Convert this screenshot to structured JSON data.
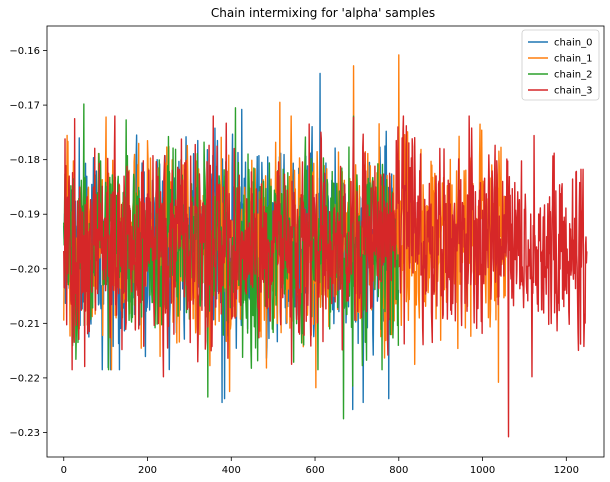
{
  "chart_data": {
    "type": "line",
    "title": "Chain intermixing for 'alpha' samples",
    "xlabel": "",
    "ylabel": "",
    "xlim": [
      -40,
      1290
    ],
    "ylim": [
      -0.2345,
      -0.1555
    ],
    "xticks": [
      0,
      200,
      400,
      600,
      800,
      1000,
      1200
    ],
    "xtick_labels": [
      "0",
      "200",
      "400",
      "600",
      "800",
      "1000",
      "1200"
    ],
    "yticks": [
      -0.23,
      -0.22,
      -0.21,
      -0.2,
      -0.19,
      -0.18,
      -0.17,
      -0.16
    ],
    "ytick_labels": [
      "−0.23",
      "−0.22",
      "−0.21",
      "−0.20",
      "−0.19",
      "−0.18",
      "−0.17",
      "−0.16"
    ],
    "grid": false,
    "legend_position": "top-right",
    "series": [
      {
        "name": "chain_0",
        "color": "#1f77b4",
        "n_samples": 800,
        "mean": -0.1955,
        "spread": 0.0105,
        "seed": 11,
        "extremes": [
          [
            60,
            -0.2125
          ],
          [
            174,
            -0.1755
          ],
          [
            320,
            -0.1765
          ],
          [
            378,
            -0.2245
          ],
          [
            384,
            -0.2238
          ],
          [
            425,
            -0.1708
          ],
          [
            612,
            -0.1642
          ],
          [
            642,
            -0.2075
          ],
          [
            690,
            -0.2258
          ],
          [
            715,
            -0.2245
          ],
          [
            776,
            -0.2238
          ]
        ]
      },
      {
        "name": "chain_1",
        "color": "#ff7f0e",
        "n_samples": 1060,
        "mean": -0.1955,
        "spread": 0.0105,
        "seed": 23,
        "extremes": [
          [
            0,
            -0.2095
          ],
          [
            396,
            -0.2225
          ],
          [
            516,
            -0.1695
          ],
          [
            602,
            -0.2218
          ],
          [
            692,
            -0.1628
          ],
          [
            800,
            -0.1608
          ],
          [
            1038,
            -0.2208
          ]
        ]
      },
      {
        "name": "chain_2",
        "color": "#2ca02c",
        "n_samples": 800,
        "mean": -0.1955,
        "spread": 0.0105,
        "seed": 37,
        "extremes": [
          [
            34,
            -0.2135
          ],
          [
            48,
            -0.1698
          ],
          [
            344,
            -0.2235
          ],
          [
            410,
            -0.1705
          ],
          [
            668,
            -0.2275
          ],
          [
            690,
            -0.2215
          ],
          [
            760,
            -0.2185
          ]
        ]
      },
      {
        "name": "chain_3",
        "color": "#d62728",
        "n_samples": 1250,
        "mean": -0.1955,
        "spread": 0.0105,
        "seed": 53,
        "extremes": [
          [
            2,
            -0.2035
          ],
          [
            20,
            -0.2185
          ],
          [
            26,
            -0.1725
          ],
          [
            238,
            -0.2198
          ],
          [
            544,
            -0.2175
          ],
          [
            1062,
            -0.2308
          ],
          [
            1118,
            -0.2198
          ],
          [
            1234,
            -0.2138
          ],
          [
            1250,
            -0.1968
          ]
        ]
      }
    ]
  }
}
